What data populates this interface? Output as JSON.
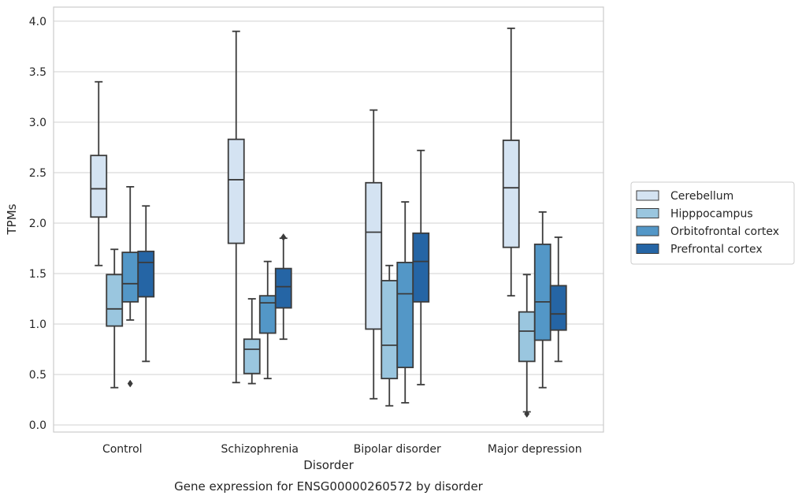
{
  "chart_data": {
    "type": "box",
    "title": "",
    "caption": "Gene expression for ENSG00000260572 by disorder",
    "xlabel": "Disorder",
    "ylabel": "TPMs",
    "ylim": [
      -0.07,
      4.14
    ],
    "yticks": [
      0.0,
      0.5,
      1.0,
      1.5,
      2.0,
      2.5,
      3.0,
      3.5,
      4.0
    ],
    "ytick_labels": [
      "0.0",
      "0.5",
      "1.0",
      "1.5",
      "2.0",
      "2.5",
      "3.0",
      "3.5",
      "4.0"
    ],
    "grid": true,
    "legend_position": "right",
    "categories": [
      "Control",
      "Schizophrenia",
      "Bipolar disorder",
      "Major depression"
    ],
    "series": [
      {
        "name": "Cerebellum",
        "color": "#d4e3f2",
        "boxes": [
          {
            "whislo": 1.58,
            "q1": 2.06,
            "med": 2.34,
            "q3": 2.67,
            "whishi": 3.4,
            "fliers": []
          },
          {
            "whislo": 0.42,
            "q1": 1.8,
            "med": 2.43,
            "q3": 2.83,
            "whishi": 3.9,
            "fliers": []
          },
          {
            "whislo": 0.26,
            "q1": 0.95,
            "med": 1.91,
            "q3": 2.4,
            "whishi": 3.12,
            "fliers": []
          },
          {
            "whislo": 1.28,
            "q1": 1.76,
            "med": 2.35,
            "q3": 2.82,
            "whishi": 3.93,
            "fliers": []
          }
        ]
      },
      {
        "name": "Hipppocampus",
        "color": "#9ac6df",
        "boxes": [
          {
            "whislo": 0.37,
            "q1": 0.98,
            "med": 1.15,
            "q3": 1.49,
            "whishi": 1.74,
            "fliers": []
          },
          {
            "whislo": 0.41,
            "q1": 0.51,
            "med": 0.75,
            "q3": 0.85,
            "whishi": 1.25,
            "fliers": []
          },
          {
            "whislo": 0.19,
            "q1": 0.46,
            "med": 0.79,
            "q3": 1.43,
            "whishi": 1.58,
            "fliers": []
          },
          {
            "whislo": 0.13,
            "q1": 0.63,
            "med": 0.93,
            "q3": 1.12,
            "whishi": 1.49,
            "fliers": [
              0.11
            ]
          }
        ]
      },
      {
        "name": "Orbitofrontal cortex",
        "color": "#5397c7",
        "boxes": [
          {
            "whislo": 1.04,
            "q1": 1.22,
            "med": 1.4,
            "q3": 1.71,
            "whishi": 2.36,
            "fliers": [
              0.41
            ]
          },
          {
            "whislo": 0.46,
            "q1": 0.91,
            "med": 1.21,
            "q3": 1.28,
            "whishi": 1.62,
            "fliers": []
          },
          {
            "whislo": 0.22,
            "q1": 0.57,
            "med": 1.3,
            "q3": 1.61,
            "whishi": 2.21,
            "fliers": []
          },
          {
            "whislo": 0.37,
            "q1": 0.84,
            "med": 1.22,
            "q3": 1.79,
            "whishi": 2.11,
            "fliers": []
          }
        ]
      },
      {
        "name": "Prefrontal cortex",
        "color": "#2565a5",
        "boxes": [
          {
            "whislo": 0.63,
            "q1": 1.27,
            "med": 1.61,
            "q3": 1.72,
            "whishi": 2.17,
            "fliers": []
          },
          {
            "whislo": 0.85,
            "q1": 1.16,
            "med": 1.37,
            "q3": 1.55,
            "whishi": 1.85,
            "fliers": [
              1.86
            ]
          },
          {
            "whislo": 0.4,
            "q1": 1.22,
            "med": 1.62,
            "q3": 1.9,
            "whishi": 2.72,
            "fliers": []
          },
          {
            "whislo": 0.63,
            "q1": 0.94,
            "med": 1.1,
            "q3": 1.38,
            "whishi": 1.86,
            "fliers": []
          }
        ]
      }
    ]
  }
}
